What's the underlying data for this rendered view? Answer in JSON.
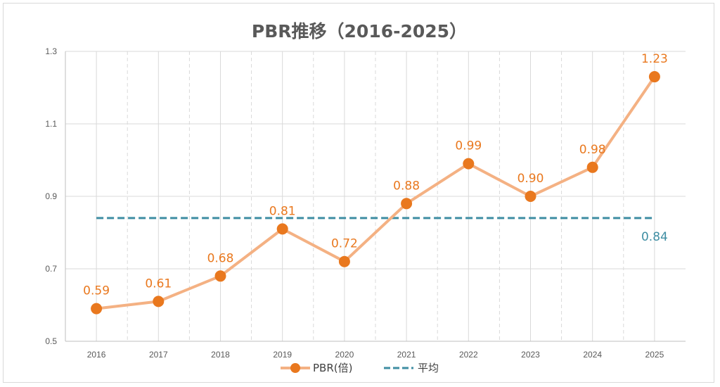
{
  "chart_data": {
    "type": "line",
    "title": "PBR推移（2016-2025）",
    "xlabel": "",
    "ylabel": "",
    "categories": [
      "2016",
      "2017",
      "2018",
      "2019",
      "2020",
      "2021",
      "2022",
      "2023",
      "2024",
      "2025"
    ],
    "series": [
      {
        "name": "PBR(倍)",
        "values": [
          0.59,
          0.61,
          0.68,
          0.81,
          0.72,
          0.88,
          0.99,
          0.9,
          0.98,
          1.23
        ],
        "labels": [
          "0.59",
          "0.61",
          "0.68",
          "0.81",
          "0.72",
          "0.88",
          "0.99",
          "0.90",
          "0.98",
          "1.23"
        ],
        "line_color": "#f4b183",
        "marker_color": "#e9781e",
        "style": "solid-with-markers"
      },
      {
        "name": "平均",
        "value": 0.84,
        "label": "0.84",
        "color": "#3f8ea3",
        "style": "dashed"
      }
    ],
    "ylim": [
      0.5,
      1.3
    ],
    "yticks": [
      "0.5",
      "0.7",
      "0.9",
      "1.1",
      "1.3"
    ],
    "grid": true,
    "legend": "bottom"
  }
}
